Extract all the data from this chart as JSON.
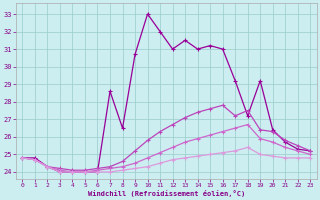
{
  "xlabel": "Windchill (Refroidissement éolien,°C)",
  "bg_color": "#cceef0",
  "grid_color": "#99cccc",
  "xlim": [
    -0.5,
    23.5
  ],
  "ylim": [
    23.6,
    33.6
  ],
  "yticks": [
    24,
    25,
    26,
    27,
    28,
    29,
    30,
    31,
    32,
    33
  ],
  "xticks": [
    0,
    1,
    2,
    3,
    4,
    5,
    6,
    7,
    8,
    9,
    10,
    11,
    12,
    13,
    14,
    15,
    16,
    17,
    18,
    19,
    20,
    21,
    22,
    23
  ],
  "lines": [
    {
      "x": [
        0,
        1,
        2,
        3,
        4,
        5,
        6,
        7,
        8,
        9,
        10,
        11,
        12,
        13,
        14,
        15,
        16,
        17,
        18,
        19,
        20,
        21,
        22,
        23
      ],
      "y": [
        24.8,
        24.8,
        24.3,
        24.0,
        24.0,
        24.0,
        24.0,
        28.6,
        26.5,
        30.7,
        33.0,
        32.0,
        31.0,
        31.5,
        31.0,
        31.2,
        31.0,
        29.2,
        27.2,
        29.2,
        26.4,
        25.7,
        25.3,
        25.2
      ],
      "color": "#990099",
      "lw": 0.9
    },
    {
      "x": [
        0,
        1,
        2,
        3,
        4,
        5,
        6,
        7,
        8,
        9,
        10,
        11,
        12,
        13,
        14,
        15,
        16,
        17,
        18,
        19,
        20,
        21,
        22,
        23
      ],
      "y": [
        24.8,
        24.7,
        24.3,
        24.2,
        24.1,
        24.1,
        24.2,
        24.3,
        24.6,
        25.2,
        25.8,
        26.3,
        26.7,
        27.1,
        27.4,
        27.6,
        27.8,
        27.2,
        27.5,
        26.4,
        26.3,
        25.8,
        25.5,
        25.2
      ],
      "color": "#bb44bb",
      "lw": 0.9
    },
    {
      "x": [
        0,
        1,
        2,
        3,
        4,
        5,
        6,
        7,
        8,
        9,
        10,
        11,
        12,
        13,
        14,
        15,
        16,
        17,
        18,
        19,
        20,
        21,
        22,
        23
      ],
      "y": [
        24.8,
        24.7,
        24.3,
        24.1,
        24.0,
        24.0,
        24.1,
        24.2,
        24.3,
        24.5,
        24.8,
        25.1,
        25.4,
        25.7,
        25.9,
        26.1,
        26.3,
        26.5,
        26.7,
        25.9,
        25.7,
        25.4,
        25.2,
        25.0
      ],
      "color": "#cc66cc",
      "lw": 0.9
    },
    {
      "x": [
        0,
        1,
        2,
        3,
        4,
        5,
        6,
        7,
        8,
        9,
        10,
        11,
        12,
        13,
        14,
        15,
        16,
        17,
        18,
        19,
        20,
        21,
        22,
        23
      ],
      "y": [
        24.8,
        24.7,
        24.3,
        24.0,
        24.0,
        24.0,
        24.0,
        24.0,
        24.1,
        24.2,
        24.3,
        24.5,
        24.7,
        24.8,
        24.9,
        25.0,
        25.1,
        25.2,
        25.4,
        25.0,
        24.9,
        24.8,
        24.8,
        24.8
      ],
      "color": "#dd99dd",
      "lw": 0.9
    }
  ]
}
